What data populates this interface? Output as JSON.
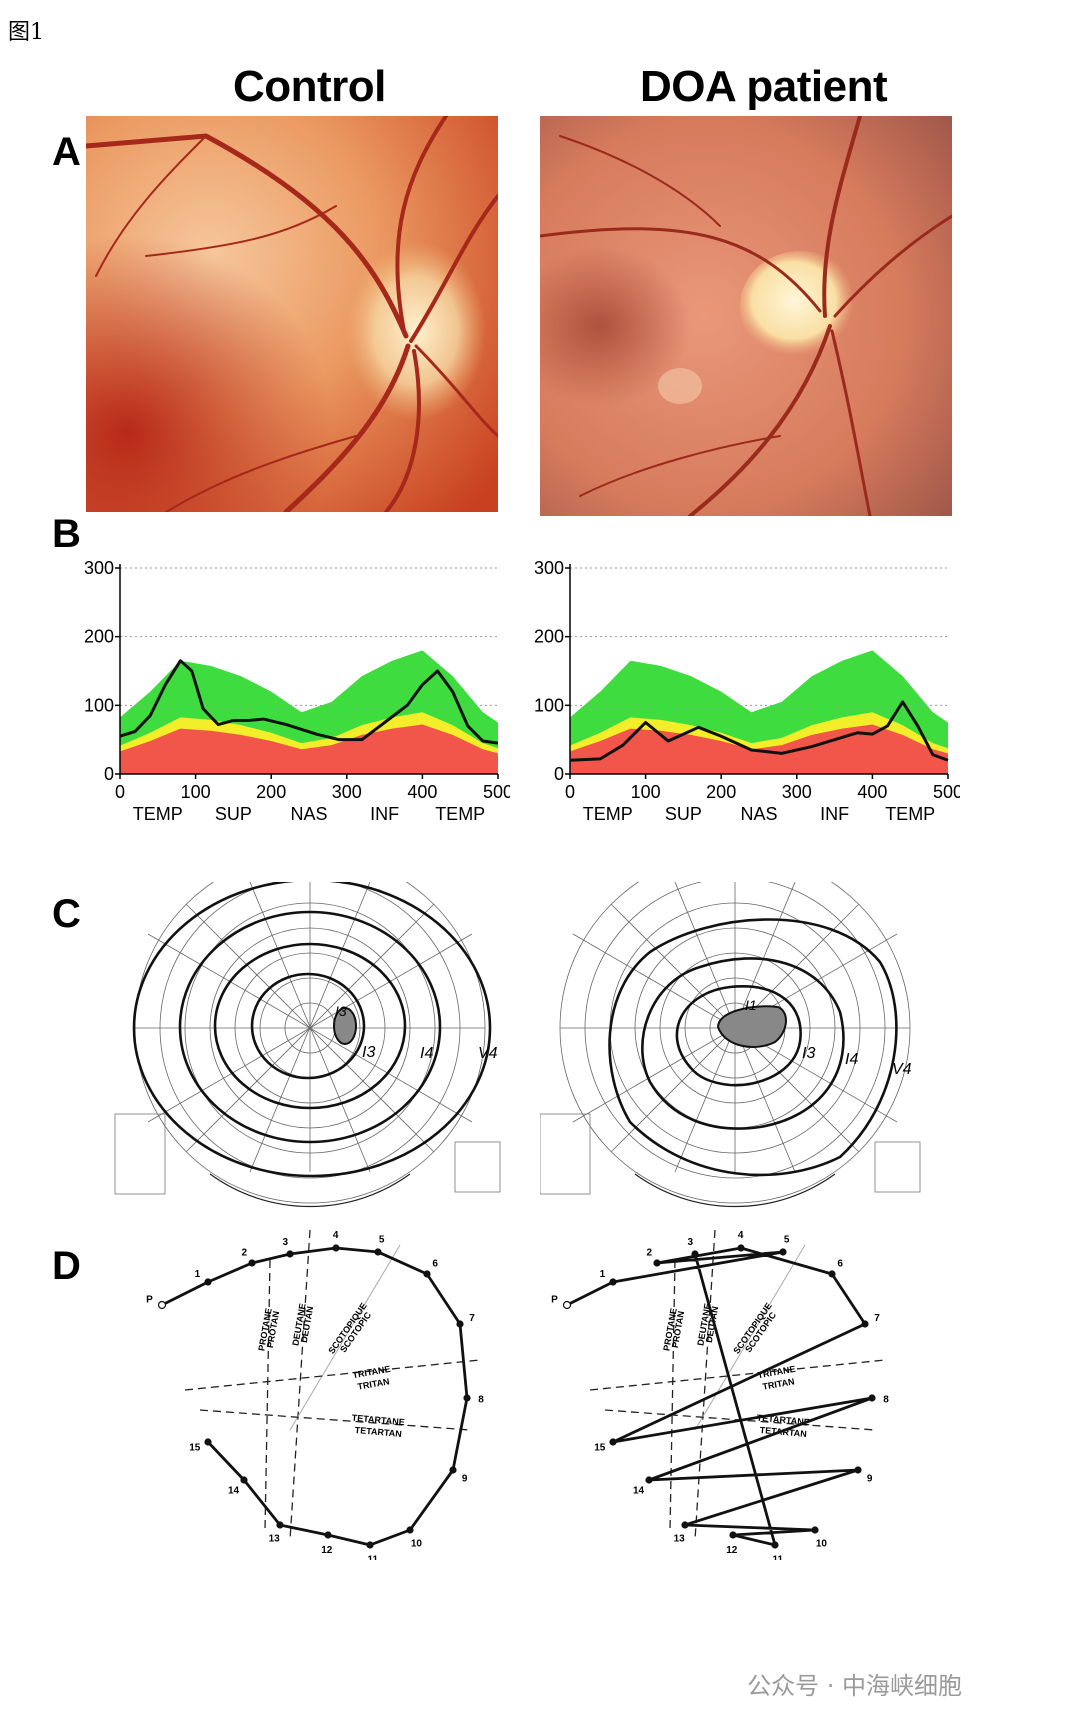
{
  "figure_label": "图1",
  "columns": [
    {
      "title": "Control"
    },
    {
      "title": "DOA patient"
    }
  ],
  "panels": {
    "a": "A",
    "b": "B",
    "c": "C",
    "d": "D"
  },
  "watermark": "公众号 · 中海峡细胞",
  "chart_data": [
    {
      "type": "line",
      "panel": "B-control",
      "ylim": [
        0,
        300
      ],
      "yticks": [
        "0",
        "100",
        "200",
        "300"
      ],
      "xlim": [
        0,
        500
      ],
      "xticks": [
        "0",
        "100",
        "200",
        "300",
        "400",
        "500"
      ],
      "sector_labels": [
        "TEMP",
        "SUP",
        "NAS",
        "INF",
        "TEMP"
      ],
      "grid": "dotted at 100, 200, 300",
      "normative_bands": {
        "red_upper": 60,
        "yellow_upper": 75,
        "green_upper": 150
      },
      "series": [
        {
          "x": [
            0,
            20,
            40,
            60,
            80,
            95,
            110,
            130,
            150,
            170,
            190,
            220,
            260,
            290,
            320,
            350,
            380,
            400,
            420,
            440,
            460,
            480,
            500
          ],
          "y": [
            55,
            62,
            85,
            130,
            165,
            150,
            95,
            72,
            78,
            78,
            80,
            72,
            58,
            50,
            50,
            75,
            100,
            130,
            150,
            120,
            70,
            48,
            45
          ]
        }
      ]
    },
    {
      "type": "line",
      "panel": "B-patient",
      "ylim": [
        0,
        300
      ],
      "yticks": [
        "0",
        "100",
        "200",
        "300"
      ],
      "xlim": [
        0,
        500
      ],
      "xticks": [
        "0",
        "100",
        "200",
        "300",
        "400",
        "500"
      ],
      "sector_labels": [
        "TEMP",
        "SUP",
        "NAS",
        "INF",
        "TEMP"
      ],
      "grid": "dotted at 100, 200, 300",
      "normative_bands": {
        "red_upper": 60,
        "yellow_upper": 75,
        "green_upper": 150
      },
      "series": [
        {
          "x": [
            0,
            40,
            70,
            100,
            130,
            170,
            200,
            240,
            280,
            320,
            350,
            380,
            400,
            420,
            440,
            460,
            480,
            500
          ],
          "y": [
            20,
            22,
            42,
            75,
            48,
            68,
            55,
            35,
            30,
            40,
            50,
            60,
            58,
            70,
            105,
            70,
            28,
            20
          ]
        }
      ]
    }
  ],
  "goldmann": {
    "control": {
      "isopters": [
        "I3",
        "I3",
        "I4",
        "V4"
      ]
    },
    "patient": {
      "isopters": [
        "I1",
        "I3",
        "I4",
        "V4"
      ]
    }
  },
  "color_cap": {
    "axis_labels": [
      "PROTANE",
      "PROTAN",
      "DEUTANE",
      "DEUTAN",
      "SCOTOPIQUE",
      "SCOTOPIC",
      "TRITANE",
      "TRITAN",
      "TETARTANE",
      "TETARTAN"
    ],
    "cap_labels": [
      "P",
      "1",
      "2",
      "3",
      "4",
      "5",
      "6",
      "7",
      "8",
      "9",
      "10",
      "11",
      "12",
      "13",
      "14",
      "15"
    ],
    "control_order": [
      "P",
      "1",
      "2",
      "3",
      "4",
      "5",
      "6",
      "7",
      "8",
      "9",
      "10",
      "11",
      "12",
      "13",
      "14",
      "15"
    ],
    "patient_order": [
      "P",
      "1",
      "5",
      "2",
      "4",
      "6",
      "7",
      "15",
      "8",
      "14",
      "9",
      "13",
      "10",
      "12",
      "11",
      "3"
    ]
  }
}
